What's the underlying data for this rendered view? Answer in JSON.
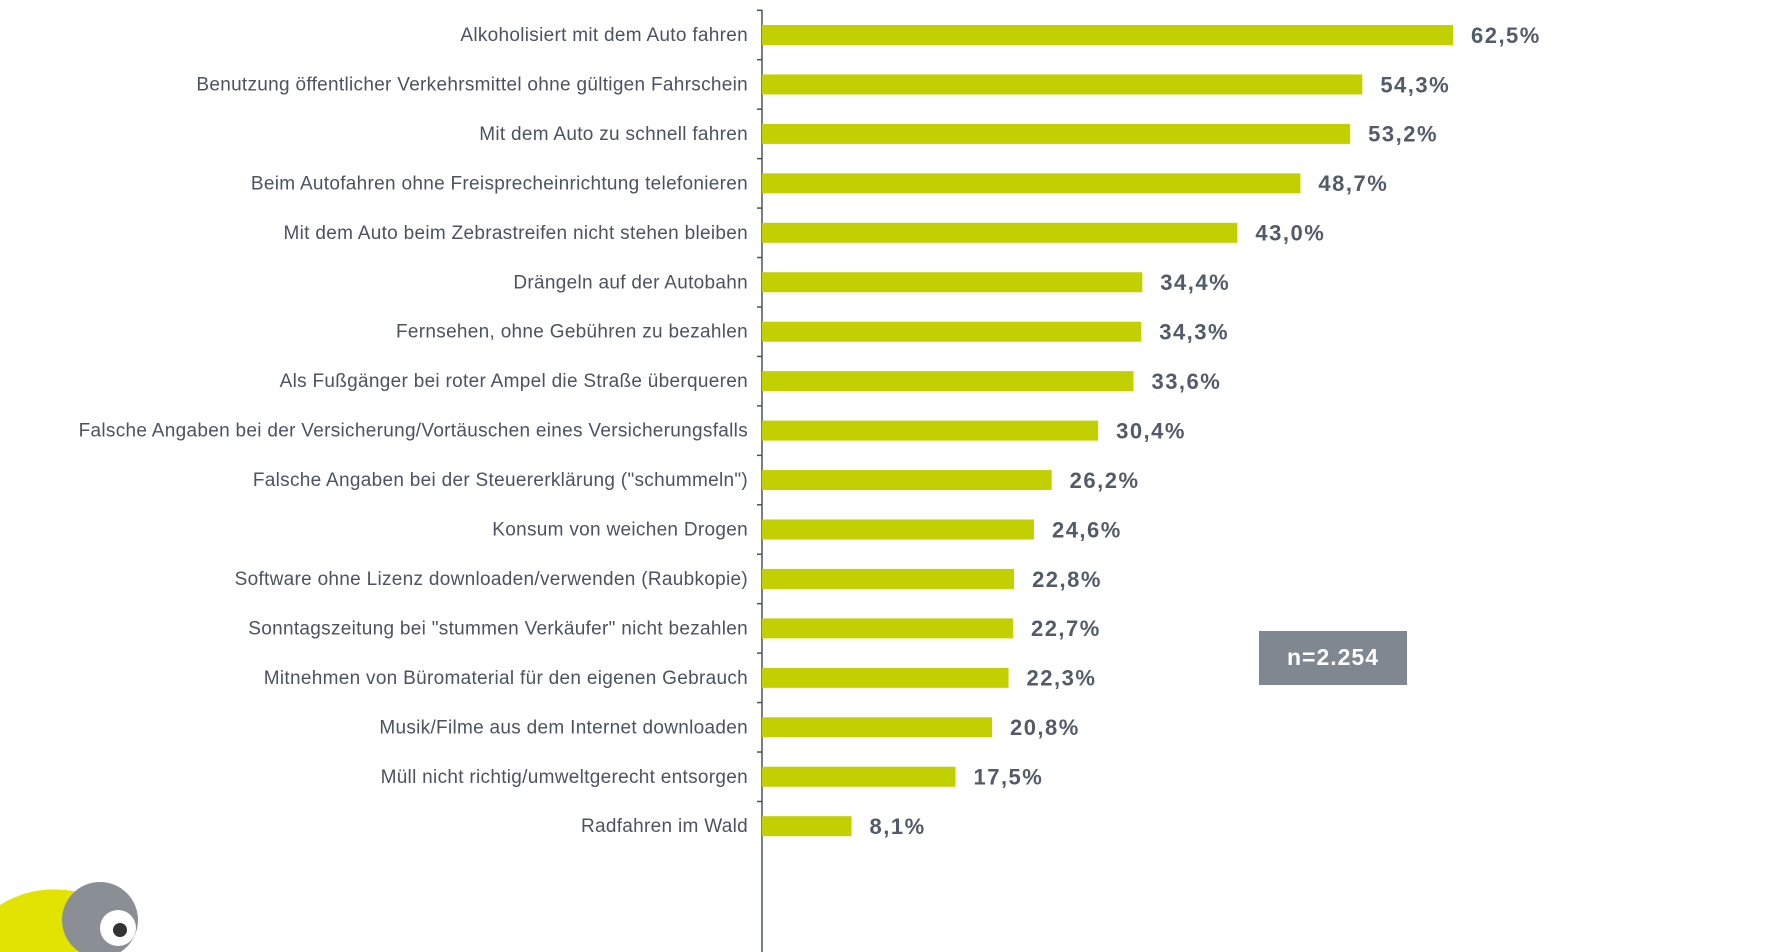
{
  "chart_data": {
    "type": "barh",
    "categories": [
      "Alkoholisiert mit dem Auto fahren",
      "Benutzung öffentlicher Verkehrsmittel ohne gültigen Fahrschein",
      "Mit dem Auto zu schnell fahren",
      "Beim Autofahren ohne Freisprecheinrichtung telefonieren",
      "Mit dem Auto beim Zebrastreifen nicht stehen bleiben",
      "Drängeln auf der Autobahn",
      "Fernsehen, ohne Gebühren zu bezahlen",
      "Als Fußgänger bei roter Ampel die Straße überqueren",
      "Falsche Angaben bei der Versicherung/Vortäuschen eines Versicherungsfalls",
      "Falsche Angaben bei der Steuererklärung (\"schummeln\")",
      "Konsum von weichen Drogen",
      "Software ohne Lizenz downloaden/verwenden (Raubkopie)",
      "Sonntagszeitung bei \"stummen Verkäufer\" nicht bezahlen",
      "Mitnehmen von Büromaterial für den eigenen Gebrauch",
      "Musik/Filme aus dem Internet downloaden",
      "Müll nicht richtig/umweltgerecht entsorgen",
      "Radfahren im Wald"
    ],
    "values": [
      62.5,
      54.3,
      53.2,
      48.7,
      43.0,
      34.4,
      34.3,
      33.6,
      30.4,
      26.2,
      24.6,
      22.8,
      22.7,
      22.3,
      20.8,
      17.5,
      8.1
    ],
    "value_labels": [
      "62,5%",
      "54,3%",
      "53,2%",
      "48,7%",
      "43,0%",
      "34,4%",
      "34,3%",
      "33,6%",
      "30,4%",
      "26,2%",
      "24,6%",
      "22,8%",
      "22,7%",
      "22,3%",
      "20,8%",
      "17,5%",
      "8,1%"
    ],
    "color": "#c2cf00",
    "xlim": [
      0,
      90
    ],
    "annotation": "n=2.254"
  }
}
